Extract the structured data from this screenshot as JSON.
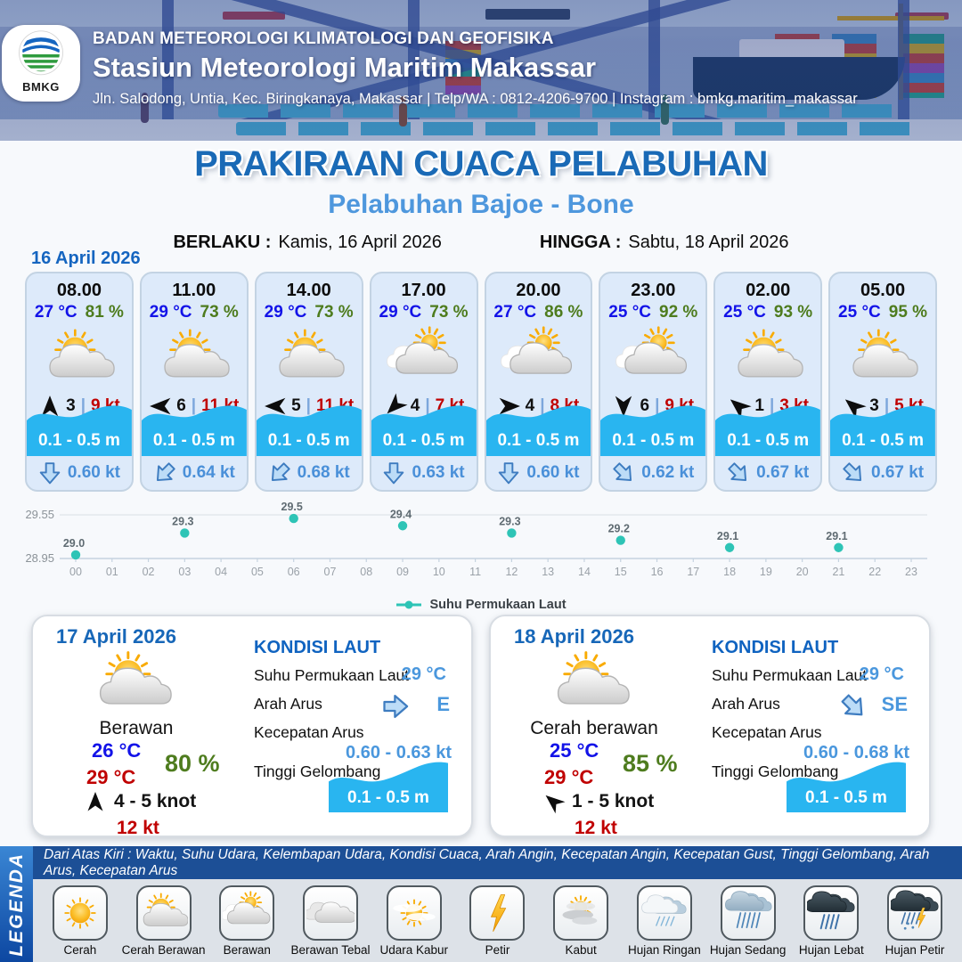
{
  "header": {
    "logo_text": "BMKG",
    "org": "BADAN METEOROLOGI KLIMATOLOGI DAN GEOFISIKA",
    "station": "Stasiun Meteorologi Maritim Makassar",
    "contact": "Jln. Salodong, Untia, Kec. Biringkanaya, Makassar | Telp/WA : 0812-4206-9700 | Instagram : bmkg.maritim_makassar"
  },
  "title": {
    "main": "PRAKIRAAN CUACA PELABUHAN",
    "subtitle": "Pelabuhan Bajoe - Bone",
    "valid_label": "BERLAKU :",
    "valid_value": "Kamis, 16 April 2026",
    "until_label": "HINGGA :",
    "until_value": "Sabtu, 18 April 2026"
  },
  "forecast": {
    "date": "16 April 2026",
    "sep": "|",
    "cards": [
      {
        "time": "08.00",
        "temp": "27 °C",
        "rh": "81 %",
        "icon": "cerah-berawan",
        "wind_dir_deg": 0,
        "wind_bft": "3",
        "wind_kt": "9 kt",
        "wave": "0.1 - 0.5 m",
        "current_dir_deg": 180,
        "current": "0.60 kt"
      },
      {
        "time": "11.00",
        "temp": "29 °C",
        "rh": "73 %",
        "icon": "cerah-berawan",
        "wind_dir_deg": 270,
        "wind_bft": "6",
        "wind_kt": "11 kt",
        "wave": "0.1 - 0.5 m",
        "current_dir_deg": 225,
        "current": "0.64 kt"
      },
      {
        "time": "14.00",
        "temp": "29 °C",
        "rh": "73 %",
        "icon": "cerah-berawan",
        "wind_dir_deg": 270,
        "wind_bft": "5",
        "wind_kt": "11 kt",
        "wave": "0.1 - 0.5 m",
        "current_dir_deg": 225,
        "current": "0.68 kt"
      },
      {
        "time": "17.00",
        "temp": "29 °C",
        "rh": "73 %",
        "icon": "berawan",
        "wind_dir_deg": 225,
        "wind_bft": "4",
        "wind_kt": "7 kt",
        "wave": "0.1 - 0.5 m",
        "current_dir_deg": 180,
        "current": "0.63 kt"
      },
      {
        "time": "20.00",
        "temp": "27 °C",
        "rh": "86 %",
        "icon": "berawan",
        "wind_dir_deg": 90,
        "wind_bft": "4",
        "wind_kt": "8 kt",
        "wave": "0.1 - 0.5 m",
        "current_dir_deg": 180,
        "current": "0.60 kt"
      },
      {
        "time": "23.00",
        "temp": "25 °C",
        "rh": "92 %",
        "icon": "berawan",
        "wind_dir_deg": 180,
        "wind_bft": "6",
        "wind_kt": "9 kt",
        "wave": "0.1 - 0.5 m",
        "current_dir_deg": 135,
        "current": "0.62 kt"
      },
      {
        "time": "02.00",
        "temp": "25 °C",
        "rh": "93 %",
        "icon": "cerah-berawan",
        "wind_dir_deg": -50,
        "wind_bft": "1",
        "wind_kt": "3 kt",
        "wave": "0.1 - 0.5 m",
        "current_dir_deg": 135,
        "current": "0.67 kt"
      },
      {
        "time": "05.00",
        "temp": "25 °C",
        "rh": "95 %",
        "icon": "cerah-berawan",
        "wind_dir_deg": -50,
        "wind_bft": "3",
        "wind_kt": "5 kt",
        "wave": "0.1 - 0.5 m",
        "current_dir_deg": 135,
        "current": "0.67 kt"
      }
    ]
  },
  "chart_data": {
    "type": "scatter",
    "title": "",
    "legend": "Suhu Permukaan Laut",
    "x": [
      0,
      3,
      6,
      9,
      12,
      15,
      18,
      21
    ],
    "values": [
      29.0,
      29.3,
      29.5,
      29.4,
      29.3,
      29.2,
      29.1,
      29.1
    ],
    "point_labels": [
      "29.0",
      "29.3",
      "29.5",
      "29.4",
      "29.3",
      "29.2",
      "29.1",
      "29.1"
    ],
    "x_ticks": [
      "00",
      "01",
      "02",
      "03",
      "04",
      "05",
      "06",
      "07",
      "08",
      "09",
      "10",
      "11",
      "12",
      "13",
      "14",
      "15",
      "16",
      "17",
      "18",
      "19",
      "20",
      "21",
      "22",
      "23"
    ],
    "y_ticks": [
      "29.55",
      "28.95"
    ],
    "ylim": [
      28.95,
      29.55
    ],
    "grid": true,
    "legend_position": "bottom",
    "point_color": "#2ec4b6"
  },
  "daily": [
    {
      "date": "17 April 2026",
      "icon": "cerah-berawan",
      "condition": "Berawan",
      "temp_min": "26 °C",
      "temp_max": "29 °C",
      "rh": "80 %",
      "wind_dir_deg": 0,
      "wind_range": "4 - 5 knot",
      "gust": "12 kt",
      "sea": {
        "heading": "KONDISI LAUT",
        "sst_label": "Suhu Permukaan Laut",
        "sst": "29 °C",
        "current_dir_label": "Arah Arus",
        "current_dir_deg": 90,
        "current_dir": "E",
        "current_speed_label": "Kecepatan Arus",
        "current_speed": "0.60 - 0.63 kt",
        "wave_label": "Tinggi Gelombang",
        "wave": "0.1 - 0.5 m"
      }
    },
    {
      "date": "18 April 2026",
      "icon": "cerah-berawan",
      "condition": "Cerah berawan",
      "temp_min": "25 °C",
      "temp_max": "29 °C",
      "rh": "85 %",
      "wind_dir_deg": -50,
      "wind_range": "1 - 5 knot",
      "gust": "12 kt",
      "sea": {
        "heading": "KONDISI LAUT",
        "sst_label": "Suhu Permukaan Laut",
        "sst": "29 °C",
        "current_dir_label": "Arah Arus",
        "current_dir_deg": 135,
        "current_dir": "SE",
        "current_speed_label": "Kecepatan Arus",
        "current_speed": "0.60 - 0.68 kt",
        "wave_label": "Tinggi Gelombang",
        "wave": "0.1 - 0.5 m"
      }
    }
  ],
  "legend": {
    "title": "LEGENDA",
    "note": "Dari Atas Kiri : Waktu, Suhu Udara, Kelembapan Udara, Kondisi Cuaca, Arah Angin, Kecepatan Angin, Kecepatan Gust, Tinggi Gelombang, Arah Arus, Kecepatan Arus",
    "items": [
      {
        "label": "Cerah",
        "icon": "cerah"
      },
      {
        "label": "Cerah Berawan",
        "icon": "cerah-berawan"
      },
      {
        "label": "Berawan",
        "icon": "berawan"
      },
      {
        "label": "Berawan Tebal",
        "icon": "berawan-tebal"
      },
      {
        "label": "Udara Kabur",
        "icon": "udara-kabur"
      },
      {
        "label": "Petir",
        "icon": "petir"
      },
      {
        "label": "Kabut",
        "icon": "kabut"
      },
      {
        "label": "Hujan Ringan",
        "icon": "hujan-ringan"
      },
      {
        "label": "Hujan Sedang",
        "icon": "hujan-sedang"
      },
      {
        "label": "Hujan Lebat",
        "icon": "hujan-lebat"
      },
      {
        "label": "Hujan Petir",
        "icon": "hujan-petir"
      }
    ]
  },
  "colors": {
    "accent_blue": "#1a6ab6",
    "subtitle_blue": "#4e97dd",
    "temp_blue": "#1313e8",
    "humidity_green": "#4e7c1e",
    "speed_red": "#c00000",
    "wave_cyan": "#29b5f0",
    "current_blue": "#4a90d9",
    "sst_teal": "#2ec4b6"
  }
}
